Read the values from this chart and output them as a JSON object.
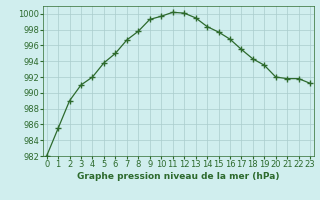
{
  "x": [
    0,
    1,
    2,
    3,
    4,
    5,
    6,
    7,
    8,
    9,
    10,
    11,
    12,
    13,
    14,
    15,
    16,
    17,
    18,
    19,
    20,
    21,
    22,
    23
  ],
  "y": [
    982,
    985.5,
    989,
    991,
    992,
    993.8,
    995,
    996.7,
    997.8,
    999.3,
    999.7,
    1000.2,
    1000.1,
    999.5,
    998.4,
    997.7,
    996.8,
    995.5,
    994.3,
    993.5,
    992,
    991.8,
    991.8,
    991.2
  ],
  "line_color": "#2d6a2d",
  "marker_color": "#2d6a2d",
  "bg_color": "#d0eeee",
  "grid_color": "#aacccc",
  "xlabel": "Graphe pression niveau de la mer (hPa)",
  "ylim_min": 982,
  "ylim_max": 1001,
  "yticks": [
    982,
    984,
    986,
    988,
    990,
    992,
    994,
    996,
    998,
    1000
  ],
  "xticks": [
    0,
    1,
    2,
    3,
    4,
    5,
    6,
    7,
    8,
    9,
    10,
    11,
    12,
    13,
    14,
    15,
    16,
    17,
    18,
    19,
    20,
    21,
    22,
    23
  ],
  "xlabel_fontsize": 6.5,
  "tick_fontsize": 6,
  "marker_size": 2.5,
  "line_width": 0.9
}
